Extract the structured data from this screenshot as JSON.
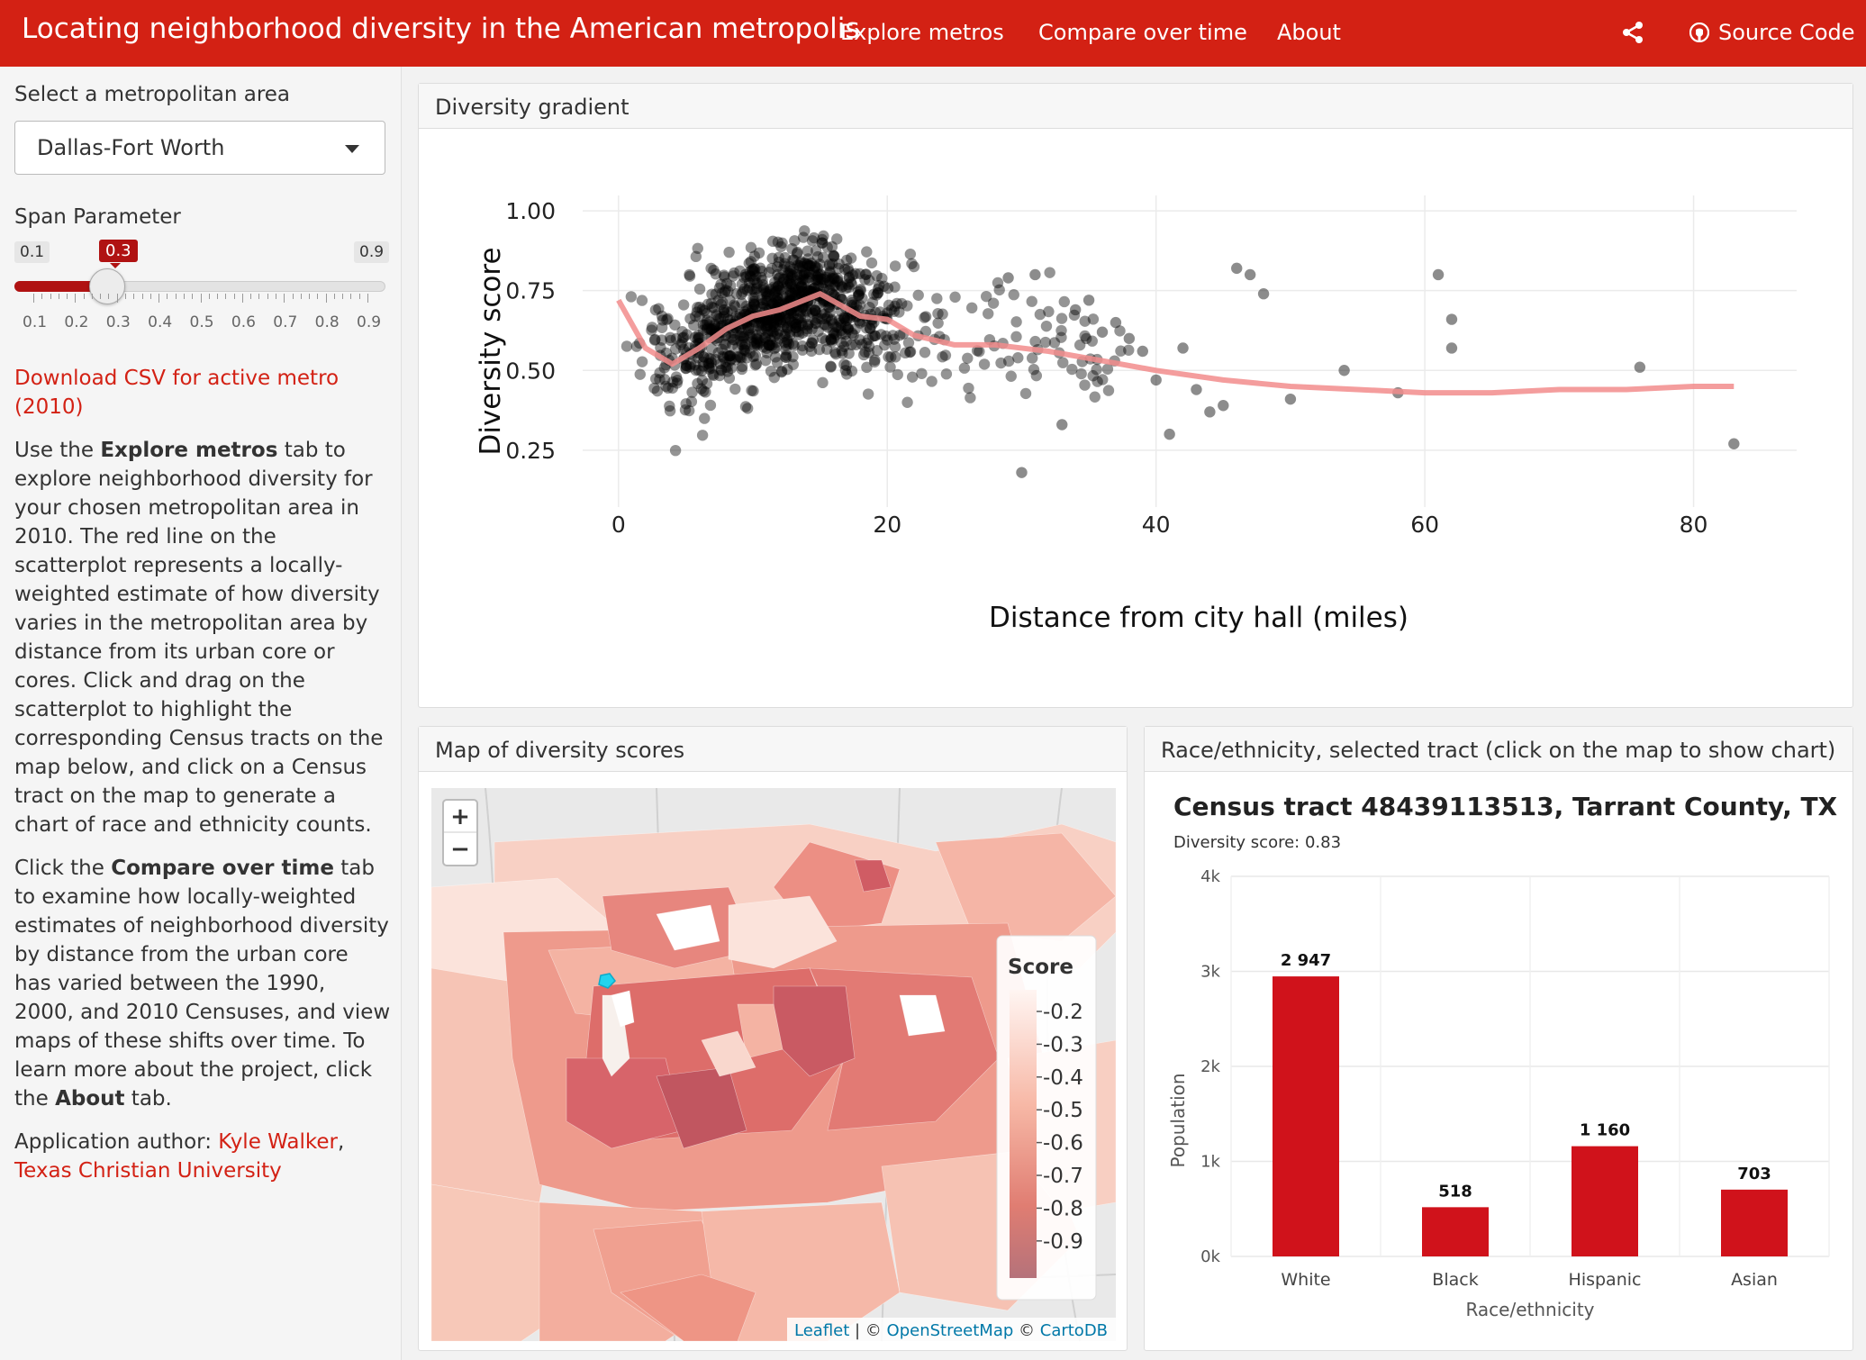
{
  "nav": {
    "title": "Locating neighborhood diversity in the American metropolis",
    "links": [
      "Explore metros",
      "Compare over time",
      "About"
    ],
    "source_code": "Source Code"
  },
  "sidebar": {
    "select_label": "Select a metropolitan area",
    "metro": "Dallas-Fort Worth",
    "span_label": "Span Parameter",
    "span_min": "0.1",
    "span_max": "0.9",
    "span_value": "0.3",
    "span_fraction": 0.25,
    "span_ticks": [
      "0.1",
      "0.2",
      "0.3",
      "0.4",
      "0.5",
      "0.6",
      "0.7",
      "0.8",
      "0.9"
    ],
    "download_line1": "Download CSV for active metro",
    "download_line2": "(2010)",
    "para1": {
      "a": "Use the ",
      "b1": "Explore metros",
      "c": " tab to explore neighborhood diversity for your chosen metropolitan area in 2010. The red line on the scatterplot represents a locally-weighted estimate of how diversity varies in the metropolitan area by distance from its urban core or cores. Click and drag on the scatterplot to highlight the corresponding Census tracts on the map below, and click on a Census tract on the map to generate a chart of race and ethnicity counts."
    },
    "para2": {
      "a": "Click the ",
      "b1": "Compare over time",
      "c": " tab to examine how locally-weighted estimates of neighborhood diversity by distance from the urban core has varied between the 1990, 2000, and 2010 Censuses, and view maps of these shifts over time. To learn more about the project, click the ",
      "b2": "About",
      "d": " tab."
    },
    "author_prefix": "Application author: ",
    "author_name": "Kyle Walker",
    "author_sep": ",",
    "author_affil": "Texas Christian University"
  },
  "panels": {
    "gradient_title": "Diversity gradient",
    "map_title": "Map of diversity scores",
    "race_title": "Race/ethnicity, selected tract (click on the map to show chart)"
  },
  "map": {
    "zoom_in": "+",
    "zoom_out": "−",
    "legend_title": "Score",
    "legend_labels": [
      "0.2",
      "0.3",
      "0.4",
      "0.5",
      "0.6",
      "0.7",
      "0.8",
      "0.9"
    ],
    "attr_leaflet": "Leaflet",
    "attr_sep1": " | © ",
    "attr_osm": "OpenStreetMap",
    "attr_sep2": " © ",
    "attr_carto": "CartoDB"
  },
  "chart_data": [
    {
      "type": "scatter",
      "xlabel": "Distance from city hall (miles)",
      "ylabel": "Diversity score",
      "xlim": [
        -2,
        87
      ],
      "ylim": [
        0.1,
        1.02
      ],
      "xticks": [
        0,
        20,
        40,
        60,
        80
      ],
      "yticks": [
        0.25,
        0.5,
        0.75,
        1.0
      ],
      "ytick_labels": [
        "0.25",
        "0.50",
        "0.75",
        "1.00"
      ],
      "grid": true,
      "point_color": "#000000",
      "smooth_color": "#f28c8c",
      "smooth_line": {
        "x": [
          0,
          2,
          4,
          6,
          8,
          10,
          12,
          15,
          18,
          20,
          22,
          25,
          28,
          32,
          36,
          40,
          45,
          50,
          55,
          60,
          65,
          70,
          75,
          80,
          83
        ],
        "y": [
          0.72,
          0.57,
          0.52,
          0.57,
          0.63,
          0.67,
          0.69,
          0.74,
          0.67,
          0.66,
          0.61,
          0.58,
          0.58,
          0.56,
          0.53,
          0.5,
          0.47,
          0.45,
          0.44,
          0.43,
          0.43,
          0.44,
          0.44,
          0.45,
          0.45
        ]
      },
      "sparse_points": {
        "x": [
          34,
          36,
          38,
          39,
          40,
          42,
          46,
          47,
          48,
          50,
          54,
          58,
          61,
          62,
          62,
          76,
          83,
          30,
          33,
          35,
          37,
          41,
          43,
          44,
          45,
          31,
          29
        ],
        "y": [
          0.69,
          0.62,
          0.6,
          0.56,
          0.47,
          0.57,
          0.82,
          0.8,
          0.74,
          0.41,
          0.5,
          0.43,
          0.8,
          0.66,
          0.57,
          0.51,
          0.27,
          0.18,
          0.33,
          0.72,
          0.65,
          0.3,
          0.44,
          0.37,
          0.39,
          0.8,
          0.79
        ]
      },
      "dense_cloud": {
        "count": 1050,
        "x_peak": 12,
        "y_center": 0.6
      }
    },
    {
      "type": "bar",
      "title": "Census tract 48439113513, Tarrant County, TX",
      "subtitle": "Diversity score: 0.83",
      "categories": [
        "White",
        "Black",
        "Hispanic",
        "Asian"
      ],
      "values": [
        2947,
        518,
        1160,
        703
      ],
      "value_labels": [
        "2 947",
        "518",
        "1 160",
        "703"
      ],
      "xlabel": "Race/ethnicity",
      "ylabel": "Population",
      "ylim": [
        0,
        4000
      ],
      "yticks": [
        0,
        1000,
        2000,
        3000,
        4000
      ],
      "ytick_labels": [
        "0k",
        "1k",
        "2k",
        "3k",
        "4k"
      ],
      "bar_color": "#d0121b",
      "grid": true
    }
  ]
}
